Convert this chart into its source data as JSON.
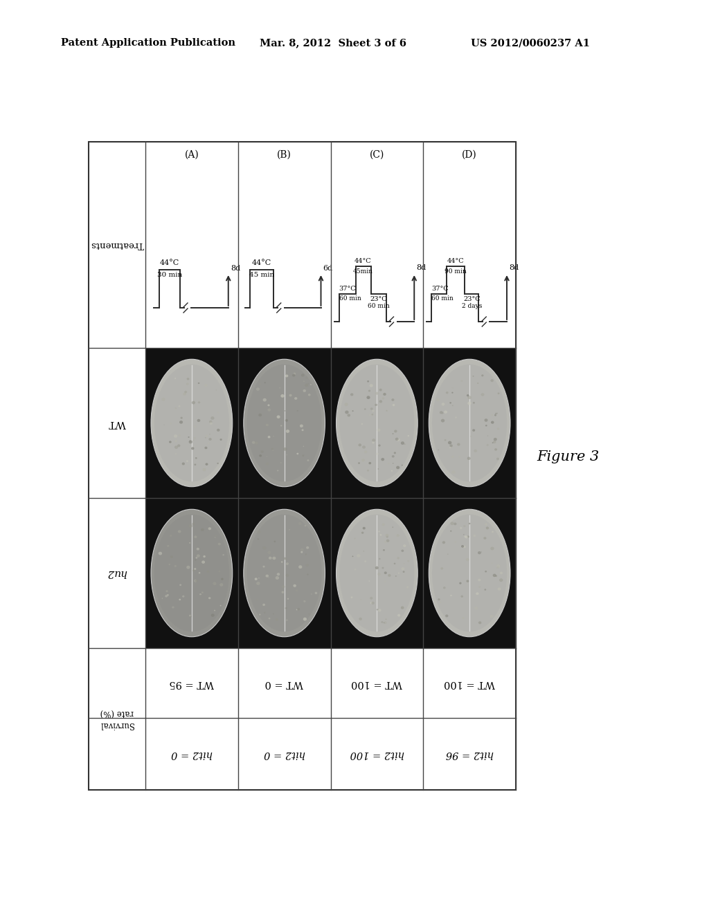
{
  "header_left": "Patent Application Publication",
  "header_mid": "Mar. 8, 2012  Sheet 3 of 6",
  "header_right": "US 2012/0060237 A1",
  "figure_label": "Figure 3",
  "bg_color": "#ffffff",
  "survival": {
    "A": {
      "wt": "WT = 95",
      "hu2": "hit2 = 0"
    },
    "B": {
      "wt": "WT = 0",
      "hu2": "hit2 = 0"
    },
    "C": {
      "wt": "WT = 100",
      "hu2": "hit2 = 100"
    },
    "D": {
      "wt": "WT = 100",
      "hu2": "hit2 = 96"
    }
  },
  "col_labels": [
    "(A)",
    "(B)",
    "(C)",
    "(D)"
  ],
  "cols": [
    "A",
    "B",
    "C",
    "D"
  ]
}
